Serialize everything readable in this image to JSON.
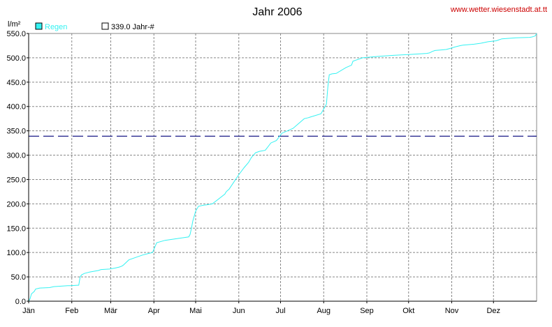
{
  "header": {
    "title": "Jahr 2006",
    "source": "www.wetter.wiesenstadt.at.tt"
  },
  "colors": {
    "series": "#33f2f2",
    "reference": "#00007a",
    "source": "#cc0000",
    "grid": "#888888",
    "text": "#000000"
  },
  "chart_data": {
    "type": "line",
    "title": "Jahr 2006",
    "ylabel": "l/m²",
    "xlim": [
      0,
      365
    ],
    "ylim": [
      0,
      550
    ],
    "yticks": [
      0,
      50,
      100,
      150,
      200,
      250,
      300,
      350,
      400,
      450,
      500,
      550
    ],
    "ytick_labels": [
      "0.0",
      "50.0",
      "100.0",
      "150.0",
      "200.0",
      "250.0",
      "300.0",
      "350.0",
      "400.0",
      "450.0",
      "500.0",
      "550.0"
    ],
    "xticks": [
      0,
      31,
      59,
      90,
      120,
      151,
      181,
      212,
      243,
      273,
      304,
      334
    ],
    "xtick_labels": [
      "Jän",
      "Feb",
      "Mär",
      "Apr",
      "Mai",
      "Jun",
      "Jul",
      "Aug",
      "Sep",
      "Okt",
      "Nov",
      "Dez"
    ],
    "grid": true,
    "legend_position": "top-left",
    "series": [
      {
        "name": "Regen",
        "x": [
          0,
          1,
          2,
          4,
          5,
          8,
          15,
          18,
          28,
          30,
          36,
          37,
          38,
          40,
          44,
          50,
          52,
          58,
          62,
          65,
          67,
          68,
          72,
          82,
          86,
          89,
          92,
          98,
          110,
          115,
          116,
          117,
          118,
          120,
          122,
          125,
          128,
          132,
          141,
          142,
          144,
          151,
          155,
          158,
          160,
          163,
          166,
          170,
          174,
          178,
          182,
          190,
          198,
          201,
          202,
          210,
          212,
          214,
          215,
          216,
          218,
          221,
          228,
          232,
          233,
          240,
          252,
          262,
          275,
          286,
          288,
          290,
          292,
          300,
          304,
          306,
          310,
          312,
          320,
          325,
          330,
          336,
          338,
          340,
          350,
          360,
          362,
          364,
          365
        ],
        "values": [
          0,
          5,
          15,
          20,
          25,
          27,
          28,
          30,
          32,
          32,
          33,
          50,
          54,
          57,
          60,
          63,
          65,
          66,
          68,
          70,
          72,
          74,
          85,
          95,
          98,
          100,
          120,
          125,
          130,
          132,
          137,
          150,
          165,
          185,
          195,
          197,
          198,
          200,
          220,
          225,
          230,
          260,
          275,
          285,
          295,
          305,
          308,
          310,
          325,
          330,
          345,
          355,
          375,
          377,
          378,
          385,
          395,
          405,
          440,
          465,
          467,
          468,
          480,
          485,
          493,
          500,
          503,
          505,
          507,
          509,
          510,
          513,
          515,
          517,
          520,
          522,
          525,
          526,
          528,
          530,
          533,
          535,
          537,
          539,
          541,
          542,
          543,
          545,
          550
        ]
      }
    ],
    "reference_line": {
      "name": "339.0 Jahr-#",
      "value": 339
    }
  }
}
